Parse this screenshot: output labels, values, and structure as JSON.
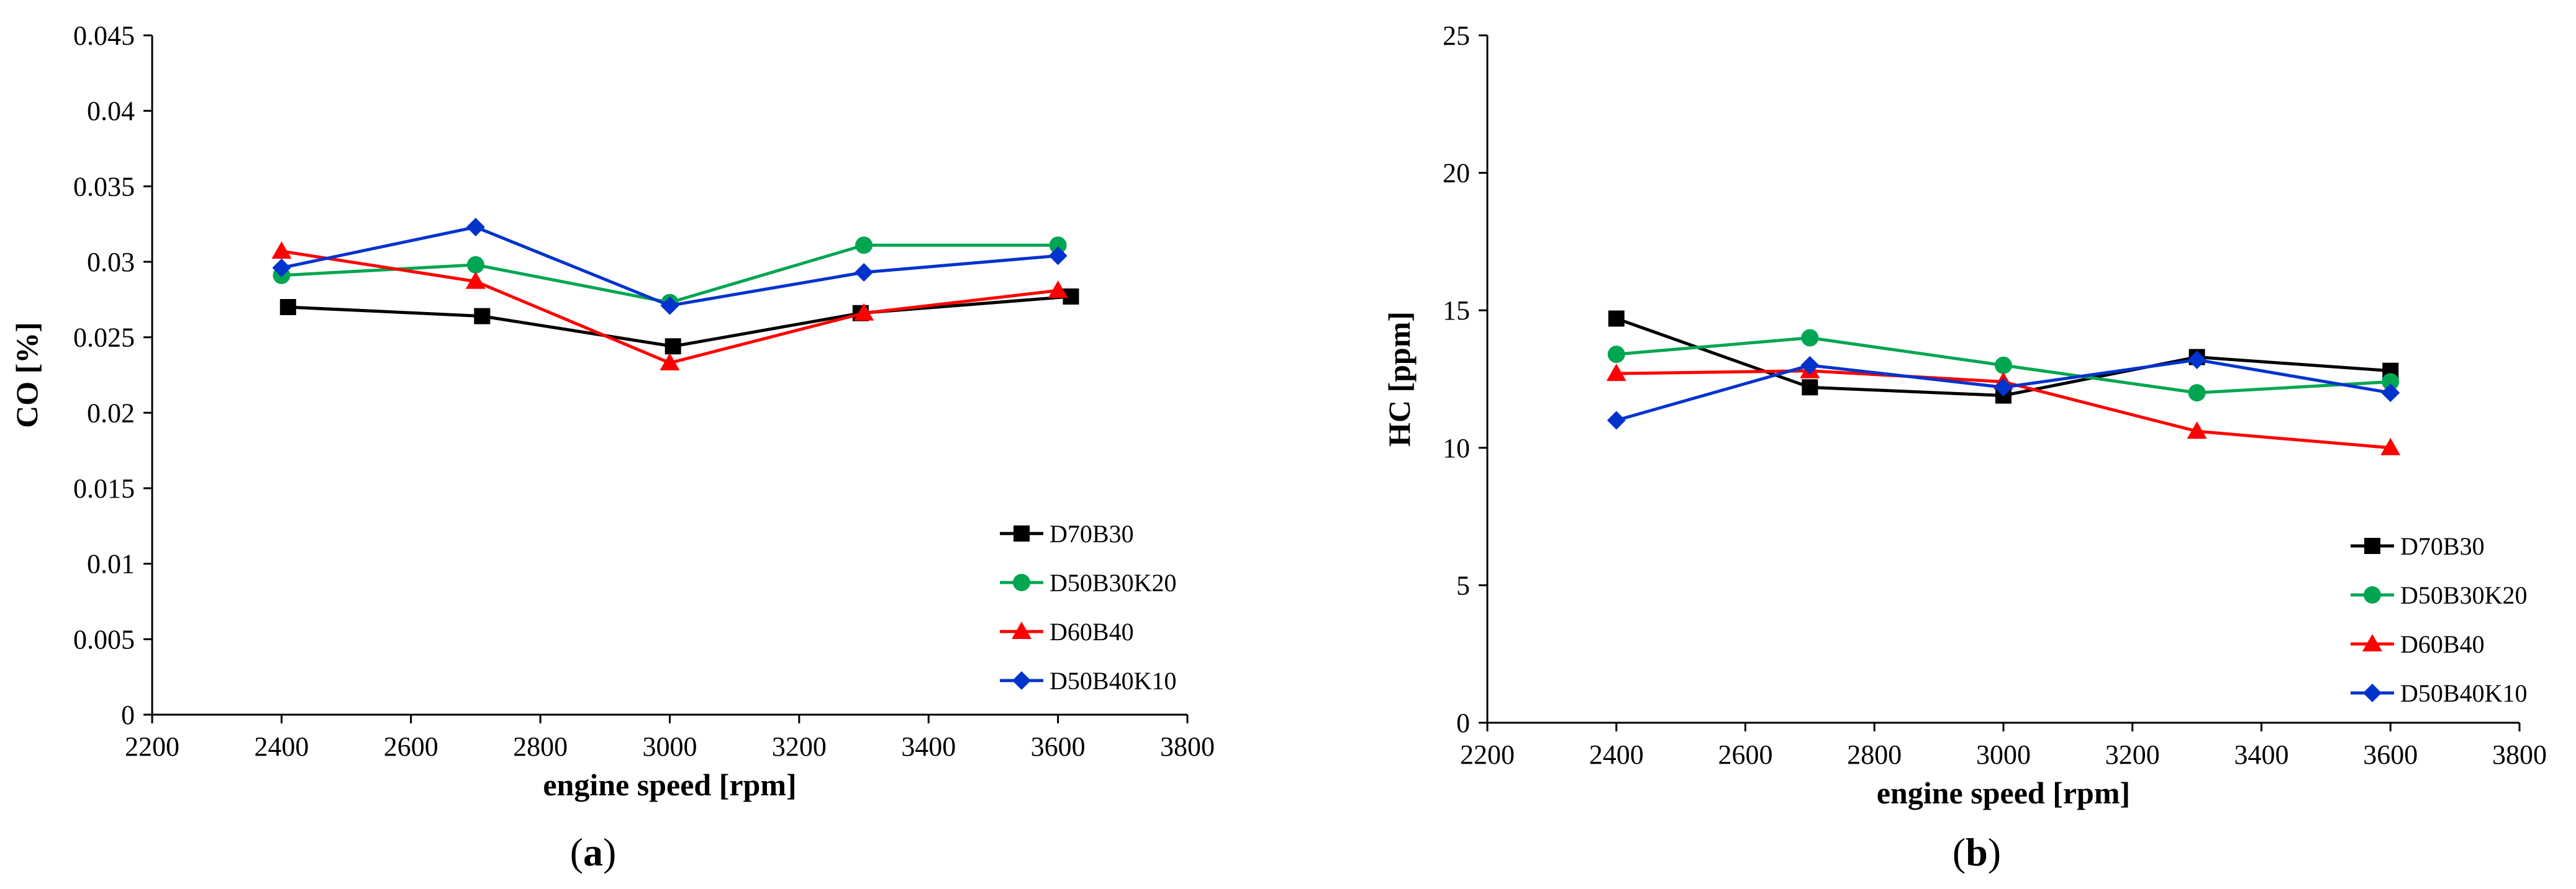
{
  "chart_data": [
    {
      "type": "line",
      "title": "",
      "xlabel": "engine speed [rpm]",
      "ylabel": "CO [%]",
      "xlim": [
        2200,
        3800
      ],
      "ylim": [
        0,
        0.045
      ],
      "xticks": [
        "2200",
        "2400",
        "2600",
        "2800",
        "3000",
        "3200",
        "3400",
        "3600",
        "3800"
      ],
      "yticks": [
        "0",
        "0.005",
        "0.01",
        "0.015",
        "0.02",
        "0.025",
        "0.03",
        "0.035",
        "0.04",
        "0.045"
      ],
      "grid": false,
      "legend_position": "bottom-right",
      "caption_prefix": "(",
      "caption_letter": "a",
      "caption_suffix": ")",
      "series": [
        {
          "name": "D70B30",
          "color": "#000000",
          "marker": "square",
          "x": [
            2410,
            2710,
            3005,
            3295,
            3620
          ],
          "y": [
            0.027,
            0.0264,
            0.0244,
            0.0266,
            0.0277
          ]
        },
        {
          "name": "D50B30K20",
          "color": "#00a651",
          "marker": "circle",
          "x": [
            2400,
            2700,
            3000,
            3300,
            3600
          ],
          "y": [
            0.0291,
            0.0298,
            0.0273,
            0.0311,
            0.0311
          ]
        },
        {
          "name": "D60B40",
          "color": "#ff0000",
          "marker": "triangle",
          "x": [
            2400,
            2700,
            3000,
            3300,
            3600
          ],
          "y": [
            0.0307,
            0.0287,
            0.0233,
            0.0266,
            0.0281
          ]
        },
        {
          "name": "D50B40K10",
          "color": "#0033cc",
          "marker": "diamond",
          "x": [
            2400,
            2700,
            3000,
            3300,
            3600
          ],
          "y": [
            0.0296,
            0.0323,
            0.0271,
            0.0293,
            0.0304
          ]
        }
      ]
    },
    {
      "type": "line",
      "title": "",
      "xlabel": "engine speed [rpm]",
      "ylabel": "HC [ppm]",
      "xlim": [
        2200,
        3800
      ],
      "ylim": [
        0,
        25
      ],
      "xticks": [
        "2200",
        "2400",
        "2600",
        "2800",
        "3000",
        "3200",
        "3400",
        "3600",
        "3800"
      ],
      "yticks": [
        "0",
        "5",
        "10",
        "15",
        "20",
        "25"
      ],
      "grid": false,
      "legend_position": "bottom-right",
      "caption_prefix": "(",
      "caption_letter": "b",
      "caption_suffix": ")",
      "series": [
        {
          "name": "D70B30",
          "color": "#000000",
          "marker": "square",
          "x": [
            2400,
            2700,
            3000,
            3300,
            3600
          ],
          "y": [
            14.7,
            12.2,
            11.9,
            13.3,
            12.8
          ]
        },
        {
          "name": "D50B30K20",
          "color": "#00a651",
          "marker": "circle",
          "x": [
            2400,
            2700,
            3000,
            3300,
            3600
          ],
          "y": [
            13.4,
            14.0,
            13.0,
            12.0,
            12.4
          ]
        },
        {
          "name": "D60B40",
          "color": "#ff0000",
          "marker": "triangle",
          "x": [
            2400,
            2700,
            3000,
            3300,
            3600
          ],
          "y": [
            12.7,
            12.8,
            12.4,
            10.6,
            10.0
          ]
        },
        {
          "name": "D50B40K10",
          "color": "#0033cc",
          "marker": "diamond",
          "x": [
            2400,
            2700,
            3000,
            3300,
            3600
          ],
          "y": [
            11.0,
            13.0,
            12.2,
            13.2,
            12.0
          ]
        }
      ]
    }
  ]
}
